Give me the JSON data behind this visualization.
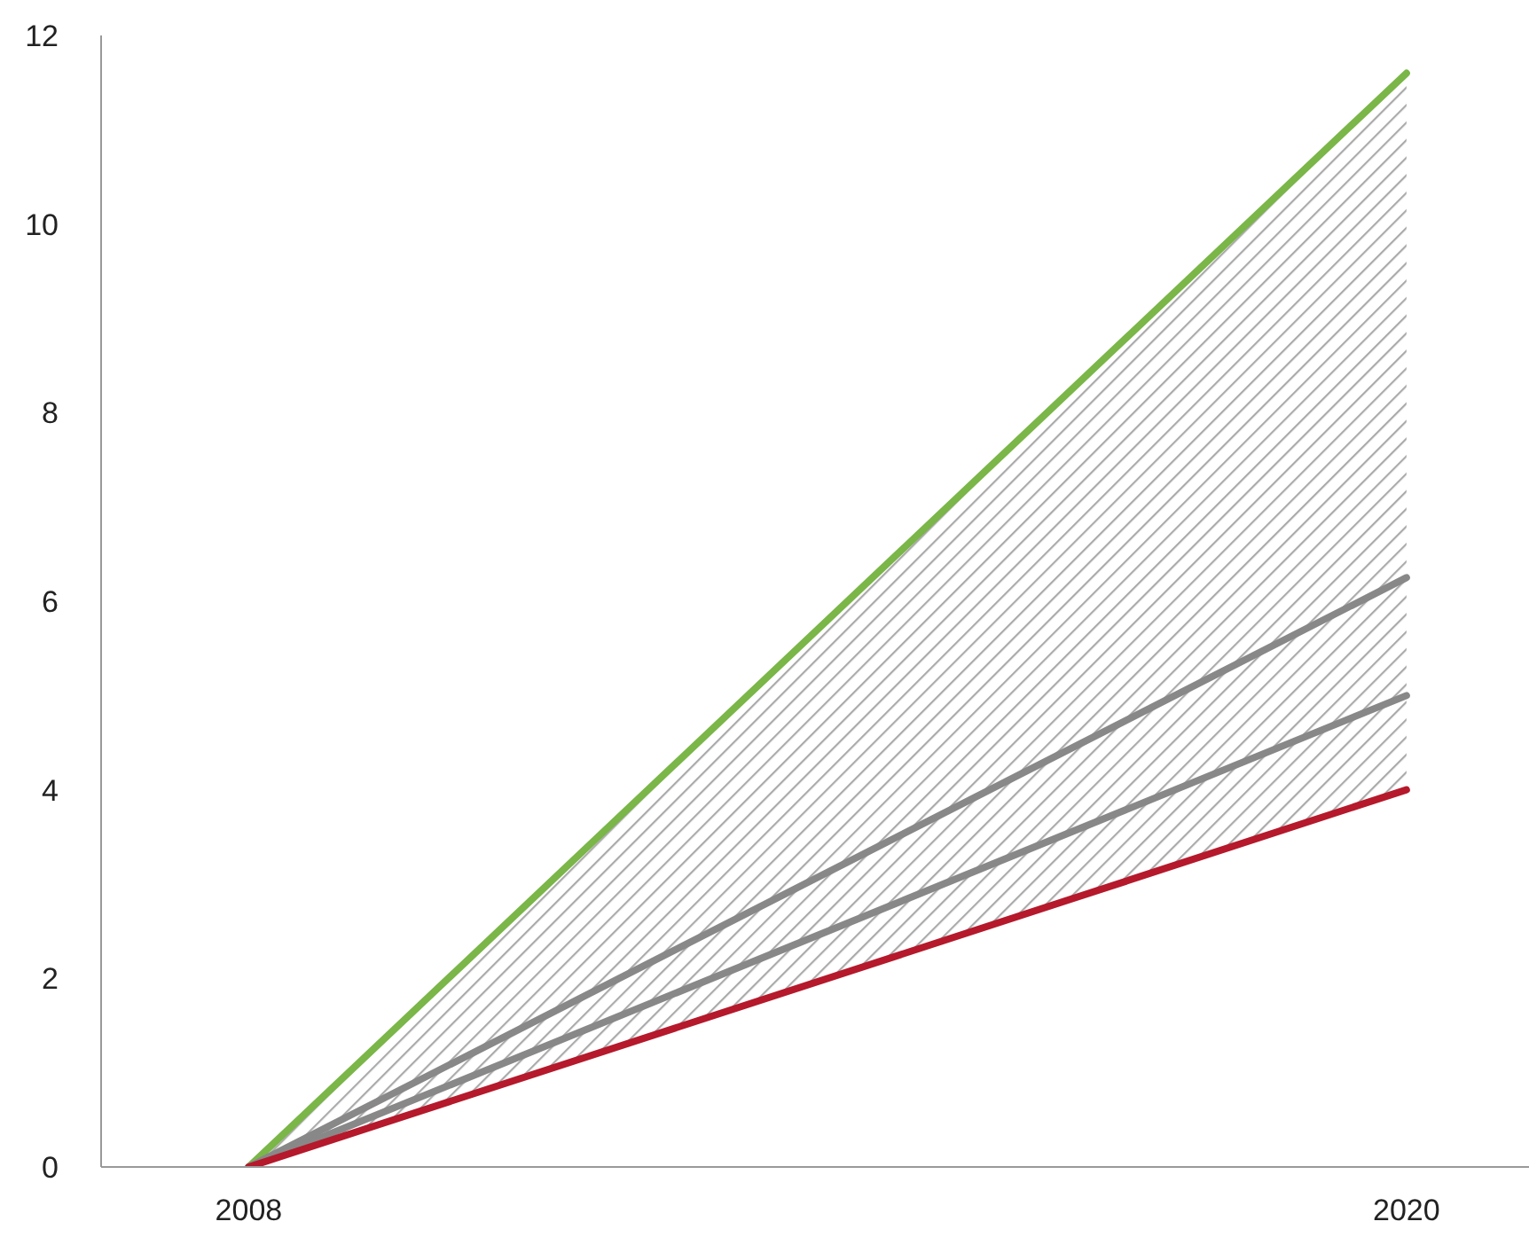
{
  "chart_data": {
    "type": "line",
    "x": [
      2008,
      2020
    ],
    "xlim": [
      2006.47,
      2021.27
    ],
    "xticks": [
      2008,
      2020
    ],
    "ylim": [
      0,
      12
    ],
    "yticks": [
      0,
      2,
      4,
      6,
      8,
      10,
      12
    ],
    "marker": "none",
    "line_style": "solid",
    "series": [
      {
        "color": "#7ab648",
        "values": [
          0,
          11.6
        ],
        "lower": [
          0,
          4.0
        ],
        "upper": [
          0,
          11.6
        ]
      },
      {
        "color": "#888888",
        "values": [
          0,
          6.25
        ]
      },
      {
        "color": "#888888",
        "values": [
          0,
          5.0
        ]
      },
      {
        "color": "#b5192b",
        "values": [
          0,
          4.0
        ]
      }
    ]
  }
}
